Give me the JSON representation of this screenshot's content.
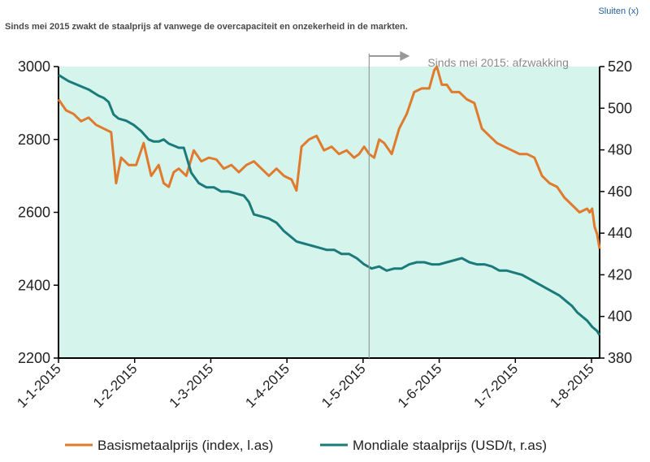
{
  "close_label": "Sluiten (x)",
  "subtitle": "Sinds mei 2015 zwakt de staalprijs af vanwege de overcapaciteit en onzekerheid in de markten.",
  "colors": {
    "plot_bg": "#d4f4ec",
    "metal": "#e07a2c",
    "steel": "#1b7a7a",
    "marker": "#999999"
  },
  "chart_data": {
    "type": "line",
    "annotation": "Sinds mei 2015: afzwakking",
    "annotation_day": 124,
    "x_categories": [
      "1-1-2015",
      "1-2-2015",
      "1-3-2015",
      "1-4-2015",
      "1-5-2015",
      "1-6-2015",
      "1-7-2015",
      "1-8-2015"
    ],
    "x_day_range": [
      0,
      216
    ],
    "y_left": {
      "ticks": [
        2200,
        2400,
        2600,
        2800,
        3000
      ],
      "range": [
        2200,
        3000
      ]
    },
    "y_right": {
      "ticks": [
        380,
        400,
        420,
        440,
        460,
        480,
        500,
        520
      ],
      "range": [
        380,
        520
      ]
    },
    "grid": false,
    "legend_position": "bottom",
    "series": [
      {
        "name": "Basismetaalprijs (index, l.as)",
        "axis": "left",
        "color": "#e07a2c",
        "points": [
          [
            0,
            2910
          ],
          [
            3,
            2880
          ],
          [
            6,
            2870
          ],
          [
            9,
            2850
          ],
          [
            12,
            2860
          ],
          [
            15,
            2840
          ],
          [
            18,
            2830
          ],
          [
            21,
            2820
          ],
          [
            23,
            2680
          ],
          [
            25,
            2750
          ],
          [
            28,
            2730
          ],
          [
            31,
            2730
          ],
          [
            34,
            2790
          ],
          [
            37,
            2700
          ],
          [
            40,
            2730
          ],
          [
            42,
            2680
          ],
          [
            44,
            2670
          ],
          [
            46,
            2710
          ],
          [
            48,
            2720
          ],
          [
            51,
            2700
          ],
          [
            54,
            2770
          ],
          [
            57,
            2740
          ],
          [
            60,
            2750
          ],
          [
            63,
            2745
          ],
          [
            66,
            2720
          ],
          [
            69,
            2730
          ],
          [
            72,
            2710
          ],
          [
            75,
            2730
          ],
          [
            78,
            2740
          ],
          [
            81,
            2720
          ],
          [
            84,
            2700
          ],
          [
            87,
            2720
          ],
          [
            90,
            2700
          ],
          [
            93,
            2690
          ],
          [
            95,
            2660
          ],
          [
            97,
            2780
          ],
          [
            100,
            2800
          ],
          [
            103,
            2810
          ],
          [
            106,
            2770
          ],
          [
            109,
            2780
          ],
          [
            112,
            2760
          ],
          [
            115,
            2770
          ],
          [
            118,
            2750
          ],
          [
            120,
            2760
          ],
          [
            122,
            2780
          ],
          [
            124,
            2760
          ],
          [
            126,
            2750
          ],
          [
            128,
            2800
          ],
          [
            130,
            2790
          ],
          [
            133,
            2760
          ],
          [
            136,
            2830
          ],
          [
            139,
            2870
          ],
          [
            142,
            2930
          ],
          [
            145,
            2940
          ],
          [
            148,
            2940
          ],
          [
            150,
            2990
          ],
          [
            151,
            3000
          ],
          [
            153,
            2950
          ],
          [
            155,
            2950
          ],
          [
            157,
            2930
          ],
          [
            160,
            2930
          ],
          [
            163,
            2910
          ],
          [
            166,
            2900
          ],
          [
            169,
            2830
          ],
          [
            172,
            2810
          ],
          [
            175,
            2790
          ],
          [
            178,
            2780
          ],
          [
            181,
            2770
          ],
          [
            184,
            2760
          ],
          [
            187,
            2760
          ],
          [
            190,
            2750
          ],
          [
            193,
            2700
          ],
          [
            196,
            2680
          ],
          [
            199,
            2670
          ],
          [
            202,
            2640
          ],
          [
            205,
            2620
          ],
          [
            208,
            2600
          ],
          [
            211,
            2610
          ],
          [
            212,
            2600
          ],
          [
            213,
            2610
          ],
          [
            214,
            2560
          ],
          [
            215,
            2540
          ],
          [
            216,
            2500
          ]
        ]
      },
      {
        "name": "Mondiale staalprijs (USD/t, r.as)",
        "axis": "right",
        "color": "#1b7a7a",
        "points": [
          [
            0,
            516
          ],
          [
            4,
            513
          ],
          [
            8,
            511
          ],
          [
            12,
            509
          ],
          [
            16,
            506
          ],
          [
            18,
            505
          ],
          [
            20,
            503
          ],
          [
            22,
            497
          ],
          [
            24,
            495
          ],
          [
            27,
            494
          ],
          [
            30,
            492
          ],
          [
            33,
            489
          ],
          [
            36,
            485
          ],
          [
            38,
            484
          ],
          [
            40,
            484
          ],
          [
            42,
            485
          ],
          [
            44,
            483
          ],
          [
            46,
            482
          ],
          [
            48,
            481
          ],
          [
            50,
            481
          ],
          [
            53,
            469
          ],
          [
            56,
            464
          ],
          [
            59,
            462
          ],
          [
            62,
            462
          ],
          [
            65,
            460
          ],
          [
            68,
            460
          ],
          [
            71,
            459
          ],
          [
            74,
            458
          ],
          [
            76,
            455
          ],
          [
            78,
            449
          ],
          [
            81,
            448
          ],
          [
            84,
            447
          ],
          [
            87,
            445
          ],
          [
            90,
            441
          ],
          [
            92,
            439
          ],
          [
            95,
            436
          ],
          [
            98,
            435
          ],
          [
            101,
            434
          ],
          [
            104,
            433
          ],
          [
            107,
            432
          ],
          [
            110,
            432
          ],
          [
            113,
            430
          ],
          [
            116,
            430
          ],
          [
            119,
            428
          ],
          [
            122,
            425
          ],
          [
            125,
            423
          ],
          [
            128,
            424
          ],
          [
            131,
            422
          ],
          [
            134,
            423
          ],
          [
            137,
            423
          ],
          [
            140,
            425
          ],
          [
            143,
            426
          ],
          [
            146,
            426
          ],
          [
            149,
            425
          ],
          [
            152,
            425
          ],
          [
            155,
            426
          ],
          [
            158,
            427
          ],
          [
            161,
            428
          ],
          [
            164,
            426
          ],
          [
            167,
            425
          ],
          [
            170,
            425
          ],
          [
            173,
            424
          ],
          [
            176,
            422
          ],
          [
            179,
            422
          ],
          [
            182,
            421
          ],
          [
            185,
            420
          ],
          [
            188,
            418
          ],
          [
            191,
            416
          ],
          [
            194,
            414
          ],
          [
            197,
            412
          ],
          [
            200,
            410
          ],
          [
            203,
            407
          ],
          [
            205,
            405
          ],
          [
            207,
            402
          ],
          [
            209,
            400
          ],
          [
            211,
            398
          ],
          [
            213,
            395
          ],
          [
            215,
            393
          ],
          [
            216,
            391
          ]
        ]
      }
    ]
  }
}
